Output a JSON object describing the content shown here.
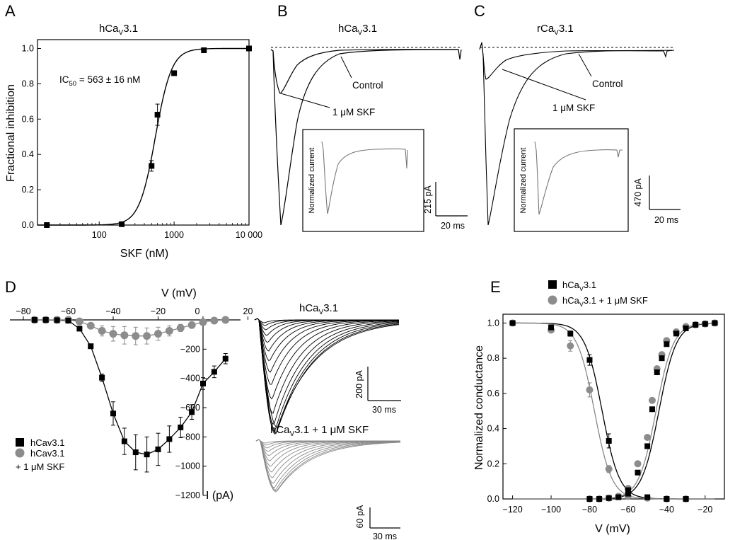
{
  "colors": {
    "black": "#000000",
    "gray": "#808080",
    "gray_marker": "#8c8c8c"
  },
  "panels": {
    "A": {
      "letter": "A",
      "title": "hCaV3.1",
      "title_main": "hCa",
      "title_sub": "V",
      "title_tail": "3.1",
      "ic50_main": "IC",
      "ic50_sub": "50",
      "ic50_tail": " = 563 ± 16 nM"
    },
    "B": {
      "letter": "B",
      "title_main": "hCa",
      "title_sub": "V",
      "title_tail": "3.1",
      "control_label": "Control",
      "skf_label": "1 μM SKF",
      "inset_label": "Normalized current",
      "scale_y": "215 pA",
      "scale_x": "20 ms"
    },
    "C": {
      "letter": "C",
      "title_main": "rCa",
      "title_sub": "V",
      "title_tail": "3.1",
      "control_label": "Control",
      "skf_label": "1 μM SKF",
      "inset_label": "Normalized current",
      "scale_y": "470 pA",
      "scale_x": "20 ms"
    },
    "D": {
      "letter": "D",
      "trace_title_top_main": "hCa",
      "trace_title_top_sub": "V",
      "trace_title_top_tail": "3.1",
      "trace_title_bottom_main": "hCa",
      "trace_title_bottom_sub": "V",
      "trace_title_bottom_tail": "3.1 + 1 μM SKF",
      "scale_top_y": "200 pA",
      "scale_top_x": "30 ms",
      "scale_bottom_y": "60 pA",
      "scale_bottom_x": "30 ms",
      "legend": [
        "hCav3.1",
        "hCav3.1",
        "+ 1 μM SKF"
      ]
    },
    "E": {
      "letter": "E",
      "legend_1_main": "hCa",
      "legend_1_sub": "V",
      "legend_1_tail": "3.1",
      "legend_2_main": "hCa",
      "legend_2_sub": "V",
      "legend_2_tail": "3.1 + 1 μM SKF"
    }
  },
  "chart_data": [
    {
      "id": "A",
      "type": "scatter",
      "title": "hCaV3.1",
      "xlabel": "SKF (nM)",
      "ylabel": "Fractional inhibition",
      "xscale": "log",
      "xlim": [
        15,
        10000
      ],
      "ylim": [
        0,
        1.05
      ],
      "xticks": [
        100,
        1000,
        10000
      ],
      "xtick_labels": [
        "100",
        "1000",
        "10 000"
      ],
      "yticks": [
        0,
        0.2,
        0.4,
        0.6,
        0.8,
        1.0
      ],
      "ytick_labels": [
        "0.0",
        "0.2",
        "0.4",
        "0.6",
        "0.8",
        "1.0"
      ],
      "points": [
        {
          "x": 20,
          "y": 0.0,
          "err": 0
        },
        {
          "x": 200,
          "y": 0.005,
          "err": 0
        },
        {
          "x": 500,
          "y": 0.335,
          "err": 0.03
        },
        {
          "x": 600,
          "y": 0.625,
          "err": 0.06
        },
        {
          "x": 1000,
          "y": 0.86,
          "err": 0.012
        },
        {
          "x": 2500,
          "y": 0.99,
          "err": 0
        },
        {
          "x": 10000,
          "y": 1.0,
          "err": 0
        }
      ],
      "fit": {
        "ic50": 563,
        "hill": 4.0
      }
    },
    {
      "id": "D",
      "type": "line",
      "xlabel": "V (mV)",
      "ylabel": "I (pA)",
      "xlim": [
        -85,
        20
      ],
      "ylim": [
        -1200,
        0
      ],
      "xticks": [
        -80,
        -60,
        -40,
        -20,
        0,
        20
      ],
      "xtick_labels": [
        "−80",
        "−60",
        "−40",
        "−20",
        "0",
        "20"
      ],
      "yticks": [
        -200,
        -400,
        -600,
        -800,
        -1000,
        -1200
      ],
      "ytick_labels": [
        "−200",
        "−400",
        "−600",
        "−800",
        "−1000",
        "−1200"
      ],
      "series": [
        {
          "name": "hCav3.1",
          "x": [
            -75,
            -70,
            -65,
            -60,
            -55,
            -50,
            -45,
            -40,
            -35,
            -30,
            -25,
            -20,
            -15,
            -10,
            -5,
            0,
            5,
            10
          ],
          "y": [
            0,
            0,
            -2,
            -5,
            -60,
            -180,
            -395,
            -640,
            -830,
            -905,
            -920,
            -885,
            -815,
            -735,
            -630,
            -435,
            -355,
            -265
          ],
          "err": [
            0,
            0,
            0,
            0,
            8,
            15,
            25,
            80,
            90,
            120,
            120,
            110,
            90,
            70,
            50,
            40,
            40,
            35
          ]
        },
        {
          "name": "hCav3.1 + 1 μM SKF",
          "x": [
            -75,
            -70,
            -65,
            -60,
            -55,
            -50,
            -45,
            -40,
            -35,
            -30,
            -25,
            -20,
            -15,
            -10,
            -5,
            0,
            5,
            10
          ],
          "y": [
            0,
            0,
            0,
            0,
            -10,
            -40,
            -75,
            -95,
            -105,
            -110,
            -110,
            -95,
            -75,
            -55,
            -35,
            -15,
            -5,
            0
          ],
          "err": [
            0,
            0,
            0,
            0,
            5,
            20,
            35,
            50,
            60,
            60,
            55,
            45,
            35,
            25,
            15,
            8,
            5,
            0
          ]
        }
      ]
    },
    {
      "id": "E",
      "type": "scatter",
      "xlabel": "V (mV)",
      "ylabel": "Normalized conductance",
      "xlim": [
        -125,
        -10
      ],
      "ylim": [
        0,
        1.05
      ],
      "xticks": [
        -120,
        -100,
        -80,
        -60,
        -40,
        -20
      ],
      "xtick_labels": [
        "−120",
        "−100",
        "−80",
        "−60",
        "−40",
        "−20"
      ],
      "yticks": [
        0,
        0.2,
        0.4,
        0.6,
        0.8,
        1.0
      ],
      "ytick_labels": [
        "0.0",
        "0.2",
        "0.4",
        "0.6",
        "0.8",
        "1.0"
      ],
      "series": [
        {
          "name": "hCaV3.1 inactivation",
          "x": [
            -120,
            -100,
            -90,
            -80,
            -70,
            -60,
            -50,
            -40,
            -30
          ],
          "y": [
            1.0,
            0.975,
            0.94,
            0.79,
            0.33,
            0.03,
            0.01,
            0.0,
            0.0
          ],
          "err": [
            0,
            0.01,
            0.015,
            0.03,
            0.04,
            0.01,
            0,
            0,
            0
          ]
        },
        {
          "name": "hCaV3.1 + 1 μM SKF inactivation",
          "x": [
            -120,
            -100,
            -90,
            -80,
            -70,
            -60,
            -50,
            -40,
            -30
          ],
          "y": [
            1.0,
            0.96,
            0.87,
            0.62,
            0.17,
            0.015,
            0.005,
            0.0,
            0.0
          ],
          "err": [
            0,
            0.015,
            0.03,
            0.04,
            0.02,
            0.01,
            0,
            0,
            0
          ]
        },
        {
          "name": "hCaV3.1 activation",
          "x": [
            -80,
            -75,
            -70,
            -65,
            -60,
            -55,
            -50,
            -47.5,
            -45,
            -42.5,
            -40,
            -35,
            -30,
            -25,
            -20,
            -15
          ],
          "y": [
            0,
            0,
            0.005,
            0.01,
            0.05,
            0.15,
            0.3,
            0.51,
            0.72,
            0.8,
            0.88,
            0.94,
            0.97,
            0.99,
            0.995,
            1.0
          ],
          "err": []
        },
        {
          "name": "hCaV3.1 + 1 μM SKF activation",
          "x": [
            -80,
            -75,
            -70,
            -65,
            -60,
            -55,
            -50,
            -47.5,
            -45,
            -42.5,
            -40,
            -35,
            -30,
            -25,
            -20,
            -15
          ],
          "y": [
            0,
            0,
            0.005,
            0.015,
            0.06,
            0.2,
            0.35,
            0.56,
            0.74,
            0.82,
            0.9,
            0.95,
            0.98,
            0.99,
            0.995,
            1.0
          ],
          "err": []
        }
      ],
      "fits": {
        "inact_black": {
          "v50": -73.5,
          "k": 4.5
        },
        "inact_gray": {
          "v50": -77.5,
          "k": 4.5
        },
        "act_black": {
          "v50": -44,
          "k": 4.5
        },
        "act_gray": {
          "v50": -45.5,
          "k": 4.5
        }
      }
    }
  ]
}
